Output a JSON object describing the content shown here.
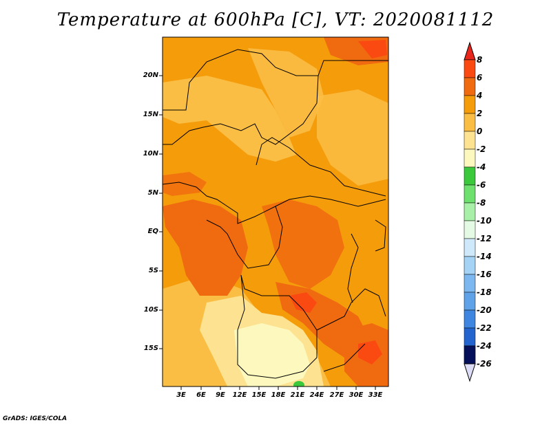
{
  "title": "Temperature at 600hPa [C], VT: 2020081112",
  "footer": "GrADS: IGES/COLA",
  "latitude_labels": [
    "20N",
    "15N",
    "10N",
    "5N",
    "EQ",
    "5S",
    "10S",
    "15S"
  ],
  "longitude_labels": [
    "3E",
    "6E",
    "9E",
    "12E",
    "15E",
    "18E",
    "21E",
    "24E",
    "27E",
    "30E",
    "33E"
  ],
  "colorbar": {
    "labels": [
      "8",
      "6",
      "4",
      "2",
      "0",
      "-2",
      "-4",
      "-6",
      "-8",
      "-10",
      "-12",
      "-14",
      "-16",
      "-18",
      "-20",
      "-22",
      "-24",
      "-26"
    ],
    "colors": [
      "#e8261c",
      "#fa4a12",
      "#f06a10",
      "#f59c0b",
      "#fbbe45",
      "#fde391",
      "#fdf9be",
      "#3cc83c",
      "#6ee06e",
      "#a8f0a8",
      "#e4fae4",
      "#cfe9fb",
      "#a4d3f5",
      "#7cb8ef",
      "#5fa2e8",
      "#3e86e0",
      "#2464cf",
      "#1547b4",
      "#0c2990",
      "#04105a",
      "#dcdcf6"
    ]
  },
  "field_colors": {
    "warm2": "#f59c0b",
    "warm0": "#fbbe45",
    "warm4": "#f06a10",
    "warm6": "#fa4a12",
    "cool_m2": "#fde391",
    "cool_m4": "#fdf9be",
    "green": "#3cc83c"
  }
}
